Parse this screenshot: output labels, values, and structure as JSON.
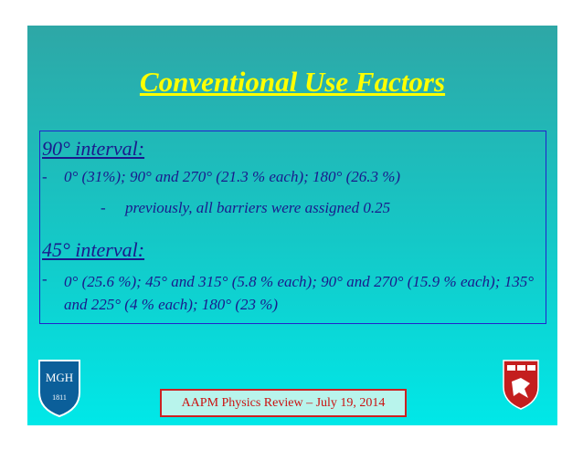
{
  "slide": {
    "title": "Conventional Use Factors",
    "sections": [
      {
        "heading": "90° interval:",
        "items": [
          {
            "bullet": "-",
            "text": "0° (31%); 90° and 270° (21.3 % each); 180° (26.3 %)"
          },
          {
            "bullet": "-",
            "text": "previously, all barriers were assigned 0.25"
          }
        ]
      },
      {
        "heading": "45° interval:",
        "items": [
          {
            "bullet": "-",
            "text": "0° (25.6 %); 45° and 315° (5.8 % each); 90° and 270° (15.9 % each); 135° and 225° (4 % each); 180° (23 %)"
          }
        ]
      }
    ],
    "footer": "AAPM Physics Review – July 19, 2014",
    "left_logo": {
      "name": "MGH",
      "year": "1811"
    }
  }
}
